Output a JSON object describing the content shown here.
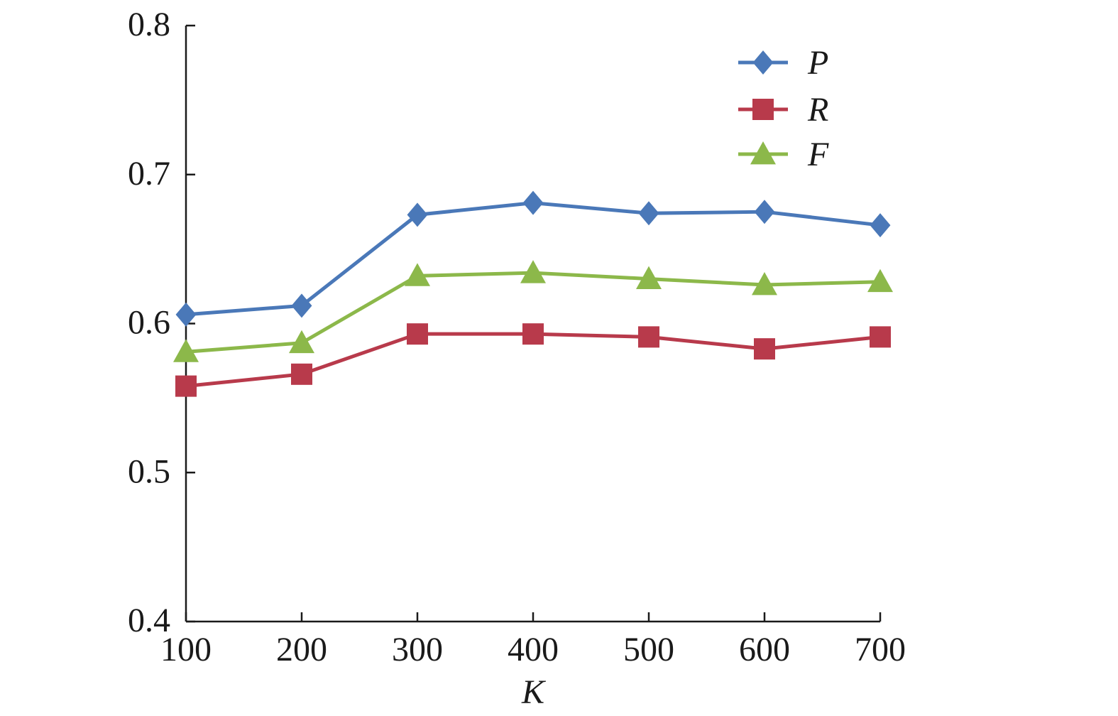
{
  "chart_data": {
    "type": "line",
    "x": [
      100,
      200,
      300,
      400,
      500,
      600,
      700
    ],
    "xlabel": "K",
    "ylabel": "",
    "xlim": [
      100,
      700
    ],
    "ylim": [
      0.4,
      0.8
    ],
    "x_ticks": [
      "100",
      "200",
      "300",
      "400",
      "500",
      "600",
      "700"
    ],
    "y_ticks": [
      "0.4",
      "0.5",
      "0.6",
      "0.7",
      "0.8"
    ],
    "y_tick_values": [
      0.4,
      0.5,
      0.6,
      0.7,
      0.8
    ],
    "grid": false,
    "legend_position": "top-right",
    "series": [
      {
        "name": "P",
        "color": "#4a78b8",
        "marker": "diamond",
        "values": [
          0.606,
          0.612,
          0.673,
          0.681,
          0.674,
          0.675,
          0.666
        ]
      },
      {
        "name": "R",
        "color": "#b83a4b",
        "marker": "square",
        "values": [
          0.558,
          0.566,
          0.593,
          0.593,
          0.591,
          0.583,
          0.591
        ]
      },
      {
        "name": "F",
        "color": "#8cb84a",
        "marker": "triangle",
        "values": [
          0.581,
          0.587,
          0.632,
          0.634,
          0.63,
          0.626,
          0.628
        ]
      }
    ]
  }
}
